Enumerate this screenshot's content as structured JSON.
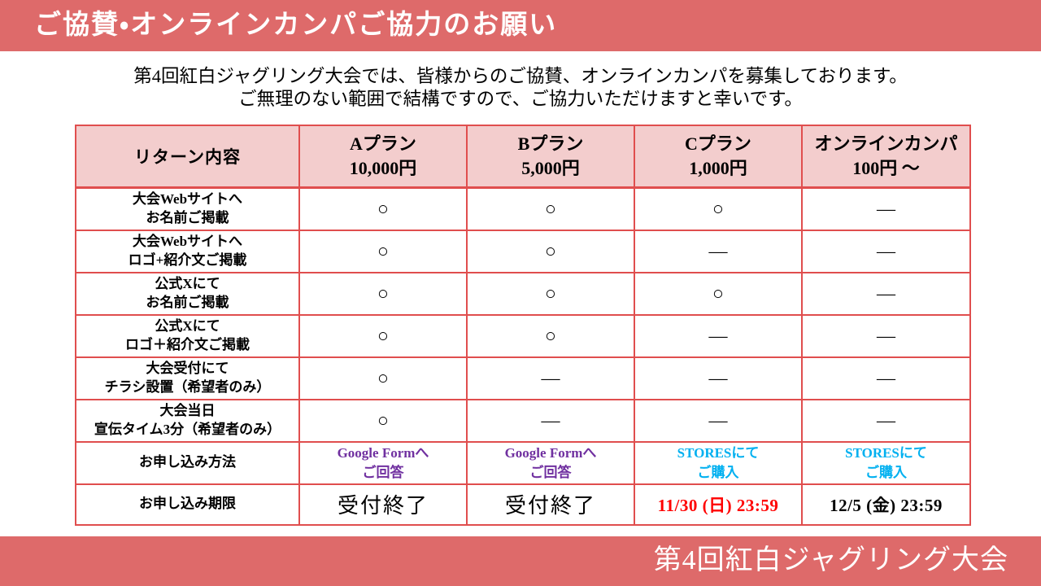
{
  "slide": {
    "title": "ご協賛・オンラインカンパご協力のお願い",
    "intro_line1": "第4回紅白ジャグリング大会では、皆様からのご協賛、オンラインカンパを募集しております。",
    "intro_line2": "ご無理のない範囲で結構ですので、ご協力いただけますと幸いです。",
    "footer": "第4回紅白ジャグリング大会"
  },
  "colors": {
    "banner_red": "#DE6A6A",
    "table_header_pink": "#F3CDCD",
    "table_border_red": "#E04E4E",
    "link_purple": "#7030A0",
    "link_cyan": "#00B0F0",
    "deadline_red": "#FF0000",
    "text_black": "#000000"
  },
  "table": {
    "header": {
      "return_label": "リターン内容",
      "plans": [
        {
          "name": "Aプラン",
          "price": "10,000円"
        },
        {
          "name": "Bプラン",
          "price": "5,000円"
        },
        {
          "name": "Cプラン",
          "price": "1,000円"
        },
        {
          "name": "オンラインカンパ",
          "price": "100円 ～"
        }
      ]
    },
    "rows": [
      {
        "label": [
          "大会Webサイトへ",
          "お名前ご掲載"
        ],
        "cells": [
          {
            "t": [
              "○"
            ],
            "cls": "mark"
          },
          {
            "t": [
              "○"
            ],
            "cls": "mark"
          },
          {
            "t": [
              "○"
            ],
            "cls": "mark"
          },
          {
            "t": [
              "—"
            ],
            "cls": "mark"
          }
        ]
      },
      {
        "label": [
          "大会Webサイトへ",
          "ロゴ+紹介文ご掲載"
        ],
        "cells": [
          {
            "t": [
              "○"
            ],
            "cls": "mark"
          },
          {
            "t": [
              "○"
            ],
            "cls": "mark"
          },
          {
            "t": [
              "—"
            ],
            "cls": "mark"
          },
          {
            "t": [
              "—"
            ],
            "cls": "mark"
          }
        ]
      },
      {
        "label": [
          "公式Xにて",
          "お名前ご掲載"
        ],
        "cells": [
          {
            "t": [
              "○"
            ],
            "cls": "mark"
          },
          {
            "t": [
              "○"
            ],
            "cls": "mark"
          },
          {
            "t": [
              "○"
            ],
            "cls": "mark"
          },
          {
            "t": [
              "—"
            ],
            "cls": "mark"
          }
        ]
      },
      {
        "label": [
          "公式Xにて",
          "ロゴ＋紹介文ご掲載"
        ],
        "cells": [
          {
            "t": [
              "○"
            ],
            "cls": "mark"
          },
          {
            "t": [
              "○"
            ],
            "cls": "mark"
          },
          {
            "t": [
              "—"
            ],
            "cls": "mark"
          },
          {
            "t": [
              "—"
            ],
            "cls": "mark"
          }
        ]
      },
      {
        "label": [
          "大会受付にて",
          "チラシ設置（希望者のみ）"
        ],
        "cells": [
          {
            "t": [
              "○"
            ],
            "cls": "mark"
          },
          {
            "t": [
              "—"
            ],
            "cls": "mark"
          },
          {
            "t": [
              "—"
            ],
            "cls": "mark"
          },
          {
            "t": [
              "—"
            ],
            "cls": "mark"
          }
        ]
      },
      {
        "label": [
          "大会当日",
          "宣伝タイム3分（希望者のみ）"
        ],
        "cells": [
          {
            "t": [
              "○"
            ],
            "cls": "mark"
          },
          {
            "t": [
              "—"
            ],
            "cls": "mark"
          },
          {
            "t": [
              "—"
            ],
            "cls": "mark"
          },
          {
            "t": [
              "—"
            ],
            "cls": "mark"
          }
        ]
      },
      {
        "label": [
          "お申し込み方法"
        ],
        "cells": [
          {
            "t": [
              "Google Formへ",
              "ご回答"
            ],
            "cls": "method",
            "c": "#7030A0"
          },
          {
            "t": [
              "Google Formへ",
              "ご回答"
            ],
            "cls": "method",
            "c": "#7030A0"
          },
          {
            "t": [
              "STORESにて",
              "ご購入"
            ],
            "cls": "method",
            "c": "#00B0F0"
          },
          {
            "t": [
              "STORESにて",
              "ご購入"
            ],
            "cls": "method",
            "c": "#00B0F0"
          }
        ]
      },
      {
        "label": [
          "お申し込み期限"
        ],
        "cells": [
          {
            "t": [
              "受付終了"
            ],
            "cls": "deadline plain"
          },
          {
            "t": [
              "受付終了"
            ],
            "cls": "deadline plain"
          },
          {
            "t": [
              "11/30 (日) 23:59"
            ],
            "cls": "deadline",
            "c": "#FF0000"
          },
          {
            "t": [
              "12/5 (金) 23:59"
            ],
            "cls": "deadline"
          }
        ]
      }
    ]
  }
}
